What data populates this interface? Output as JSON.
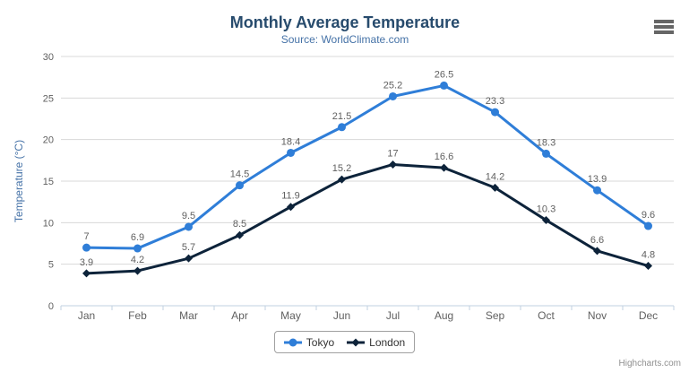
{
  "chart_data": {
    "type": "line",
    "title": "Monthly Average Temperature",
    "subtitle": "Source: WorldClimate.com",
    "xlabel": "",
    "ylabel": "Temperature (°C)",
    "categories": [
      "Jan",
      "Feb",
      "Mar",
      "Apr",
      "May",
      "Jun",
      "Jul",
      "Aug",
      "Sep",
      "Oct",
      "Nov",
      "Dec"
    ],
    "series": [
      {
        "name": "Tokyo",
        "marker": "circle",
        "color": "#2f7ed8",
        "values": [
          7,
          6.9,
          9.5,
          14.5,
          18.4,
          21.5,
          25.2,
          26.5,
          23.3,
          18.3,
          13.9,
          9.6
        ]
      },
      {
        "name": "London",
        "marker": "diamond",
        "color": "#0d233a",
        "values": [
          3.9,
          4.2,
          5.7,
          8.5,
          11.9,
          15.2,
          17,
          16.6,
          14.2,
          10.3,
          6.6,
          4.8
        ]
      }
    ],
    "ylim": [
      0,
      30
    ],
    "ytick_interval": 5,
    "grid": true,
    "data_labels": true,
    "legend_position": "bottom"
  },
  "style": {
    "title_color": "#274b6d",
    "subtitle_color": "#4572a7",
    "axis_title_color": "#4572a7",
    "tick_label_color": "#606060",
    "data_label_color": "#606060",
    "gridline_color": "#d8d8d8",
    "axis_line_color": "#c0d0e0",
    "legend_border_color": "#a0a0a0",
    "legend_text_color": "#333333",
    "burger_color": "#666666",
    "credits_color": "#909090"
  },
  "header": {
    "menu_icon": "hamburger-menu"
  },
  "credits": {
    "label": "Highcharts.com"
  }
}
